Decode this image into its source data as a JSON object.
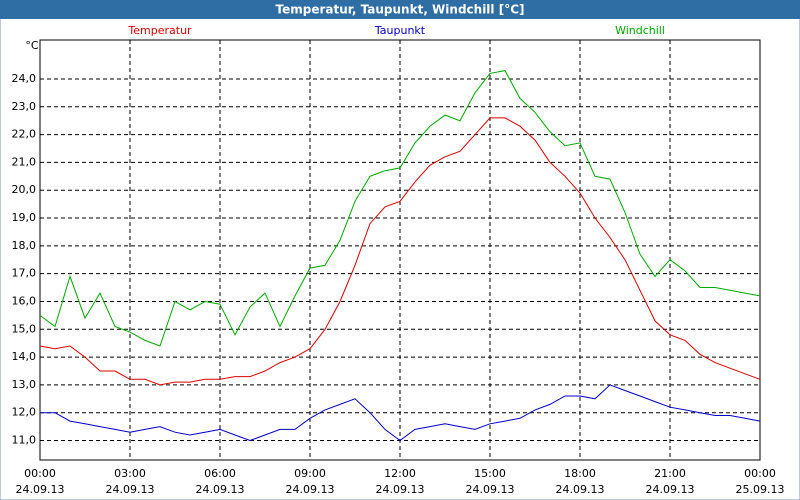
{
  "chart_data": {
    "type": "line",
    "title": "Temperatur, Taupunkt, Windchill [°C]",
    "y_unit": "°C",
    "x": [
      0,
      0.5,
      1,
      1.5,
      2,
      2.5,
      3,
      3.5,
      4,
      4.5,
      5,
      5.5,
      6,
      6.5,
      7,
      7.5,
      8,
      8.5,
      9,
      9.5,
      10,
      10.5,
      11,
      11.5,
      12,
      12.5,
      13,
      13.5,
      14,
      14.5,
      15,
      15.5,
      16,
      16.5,
      17,
      17.5,
      18,
      18.5,
      19,
      19.5,
      20,
      20.5,
      21,
      21.5,
      22,
      22.5,
      23,
      23.5,
      24
    ],
    "xlim": [
      0,
      24
    ],
    "xticks": [
      {
        "value": 0,
        "label": "00:00"
      },
      {
        "value": 3,
        "label": "03:00"
      },
      {
        "value": 6,
        "label": "06:00"
      },
      {
        "value": 9,
        "label": "09:00"
      },
      {
        "value": 12,
        "label": "12:00"
      },
      {
        "value": 15,
        "label": "15:00"
      },
      {
        "value": 18,
        "label": "18:00"
      },
      {
        "value": 21,
        "label": "21:00"
      },
      {
        "value": 24,
        "label": "00:00"
      }
    ],
    "xtick_dates": [
      "24.09.13",
      "24.09.13",
      "24.09.13",
      "24.09.13",
      "24.09.13",
      "24.09.13",
      "24.09.13",
      "24.09.13",
      "25.09.13"
    ],
    "ylim": [
      10.3,
      25.4
    ],
    "yticks": [
      {
        "value": 11,
        "label": "11,0"
      },
      {
        "value": 12,
        "label": "12,0"
      },
      {
        "value": 13,
        "label": "13,0"
      },
      {
        "value": 14,
        "label": "14,0"
      },
      {
        "value": 15,
        "label": "15,0"
      },
      {
        "value": 16,
        "label": "16,0"
      },
      {
        "value": 17,
        "label": "17,0"
      },
      {
        "value": 18,
        "label": "18,0"
      },
      {
        "value": 19,
        "label": "19,0"
      },
      {
        "value": 20,
        "label": "20,0"
      },
      {
        "value": 21,
        "label": "21,0"
      },
      {
        "value": 22,
        "label": "22,0"
      },
      {
        "value": 23,
        "label": "23,0"
      },
      {
        "value": 24,
        "label": "24,0"
      }
    ],
    "grid": true,
    "series": [
      {
        "name": "Temperatur",
        "color": "#dd0000",
        "values": [
          14.4,
          14.3,
          14.4,
          14.0,
          13.5,
          13.5,
          13.2,
          13.2,
          13.0,
          13.1,
          13.1,
          13.2,
          13.2,
          13.3,
          13.3,
          13.5,
          13.8,
          14.0,
          14.3,
          15.0,
          16.0,
          17.3,
          18.8,
          19.4,
          19.6,
          20.3,
          20.9,
          21.2,
          21.4,
          22.0,
          22.6,
          22.6,
          22.3,
          21.8,
          21.0,
          20.5,
          19.9,
          19.0,
          18.3,
          17.5,
          16.4,
          15.3,
          14.8,
          14.6,
          14.1,
          13.8,
          13.6,
          13.4,
          13.2
        ]
      },
      {
        "name": "Taupunkt",
        "color": "#0000cc",
        "values": [
          12.0,
          12.0,
          11.7,
          11.6,
          11.5,
          11.4,
          11.3,
          11.4,
          11.5,
          11.3,
          11.2,
          11.3,
          11.4,
          11.2,
          11.0,
          11.2,
          11.4,
          11.4,
          11.8,
          12.1,
          12.3,
          12.5,
          12.0,
          11.4,
          11.0,
          11.4,
          11.5,
          11.6,
          11.5,
          11.4,
          11.6,
          11.7,
          11.8,
          12.1,
          12.3,
          12.6,
          12.6,
          12.5,
          13.0,
          12.8,
          12.6,
          12.4,
          12.2,
          12.1,
          12.0,
          11.9,
          11.9,
          11.8,
          11.7
        ]
      },
      {
        "name": "Windchill",
        "color": "#00aa00",
        "values": [
          15.5,
          15.1,
          16.9,
          15.4,
          16.3,
          15.1,
          14.9,
          14.6,
          14.4,
          16.0,
          15.7,
          16.0,
          15.9,
          14.8,
          15.8,
          16.3,
          15.1,
          16.2,
          17.2,
          17.3,
          18.2,
          19.6,
          20.5,
          20.7,
          20.8,
          21.7,
          22.3,
          22.7,
          22.5,
          23.5,
          24.2,
          24.3,
          23.3,
          22.8,
          22.1,
          21.6,
          21.7,
          20.5,
          20.4,
          19.2,
          17.7,
          16.9,
          17.5,
          17.1,
          16.5,
          16.5,
          16.4,
          16.3,
          16.2
        ]
      }
    ]
  }
}
